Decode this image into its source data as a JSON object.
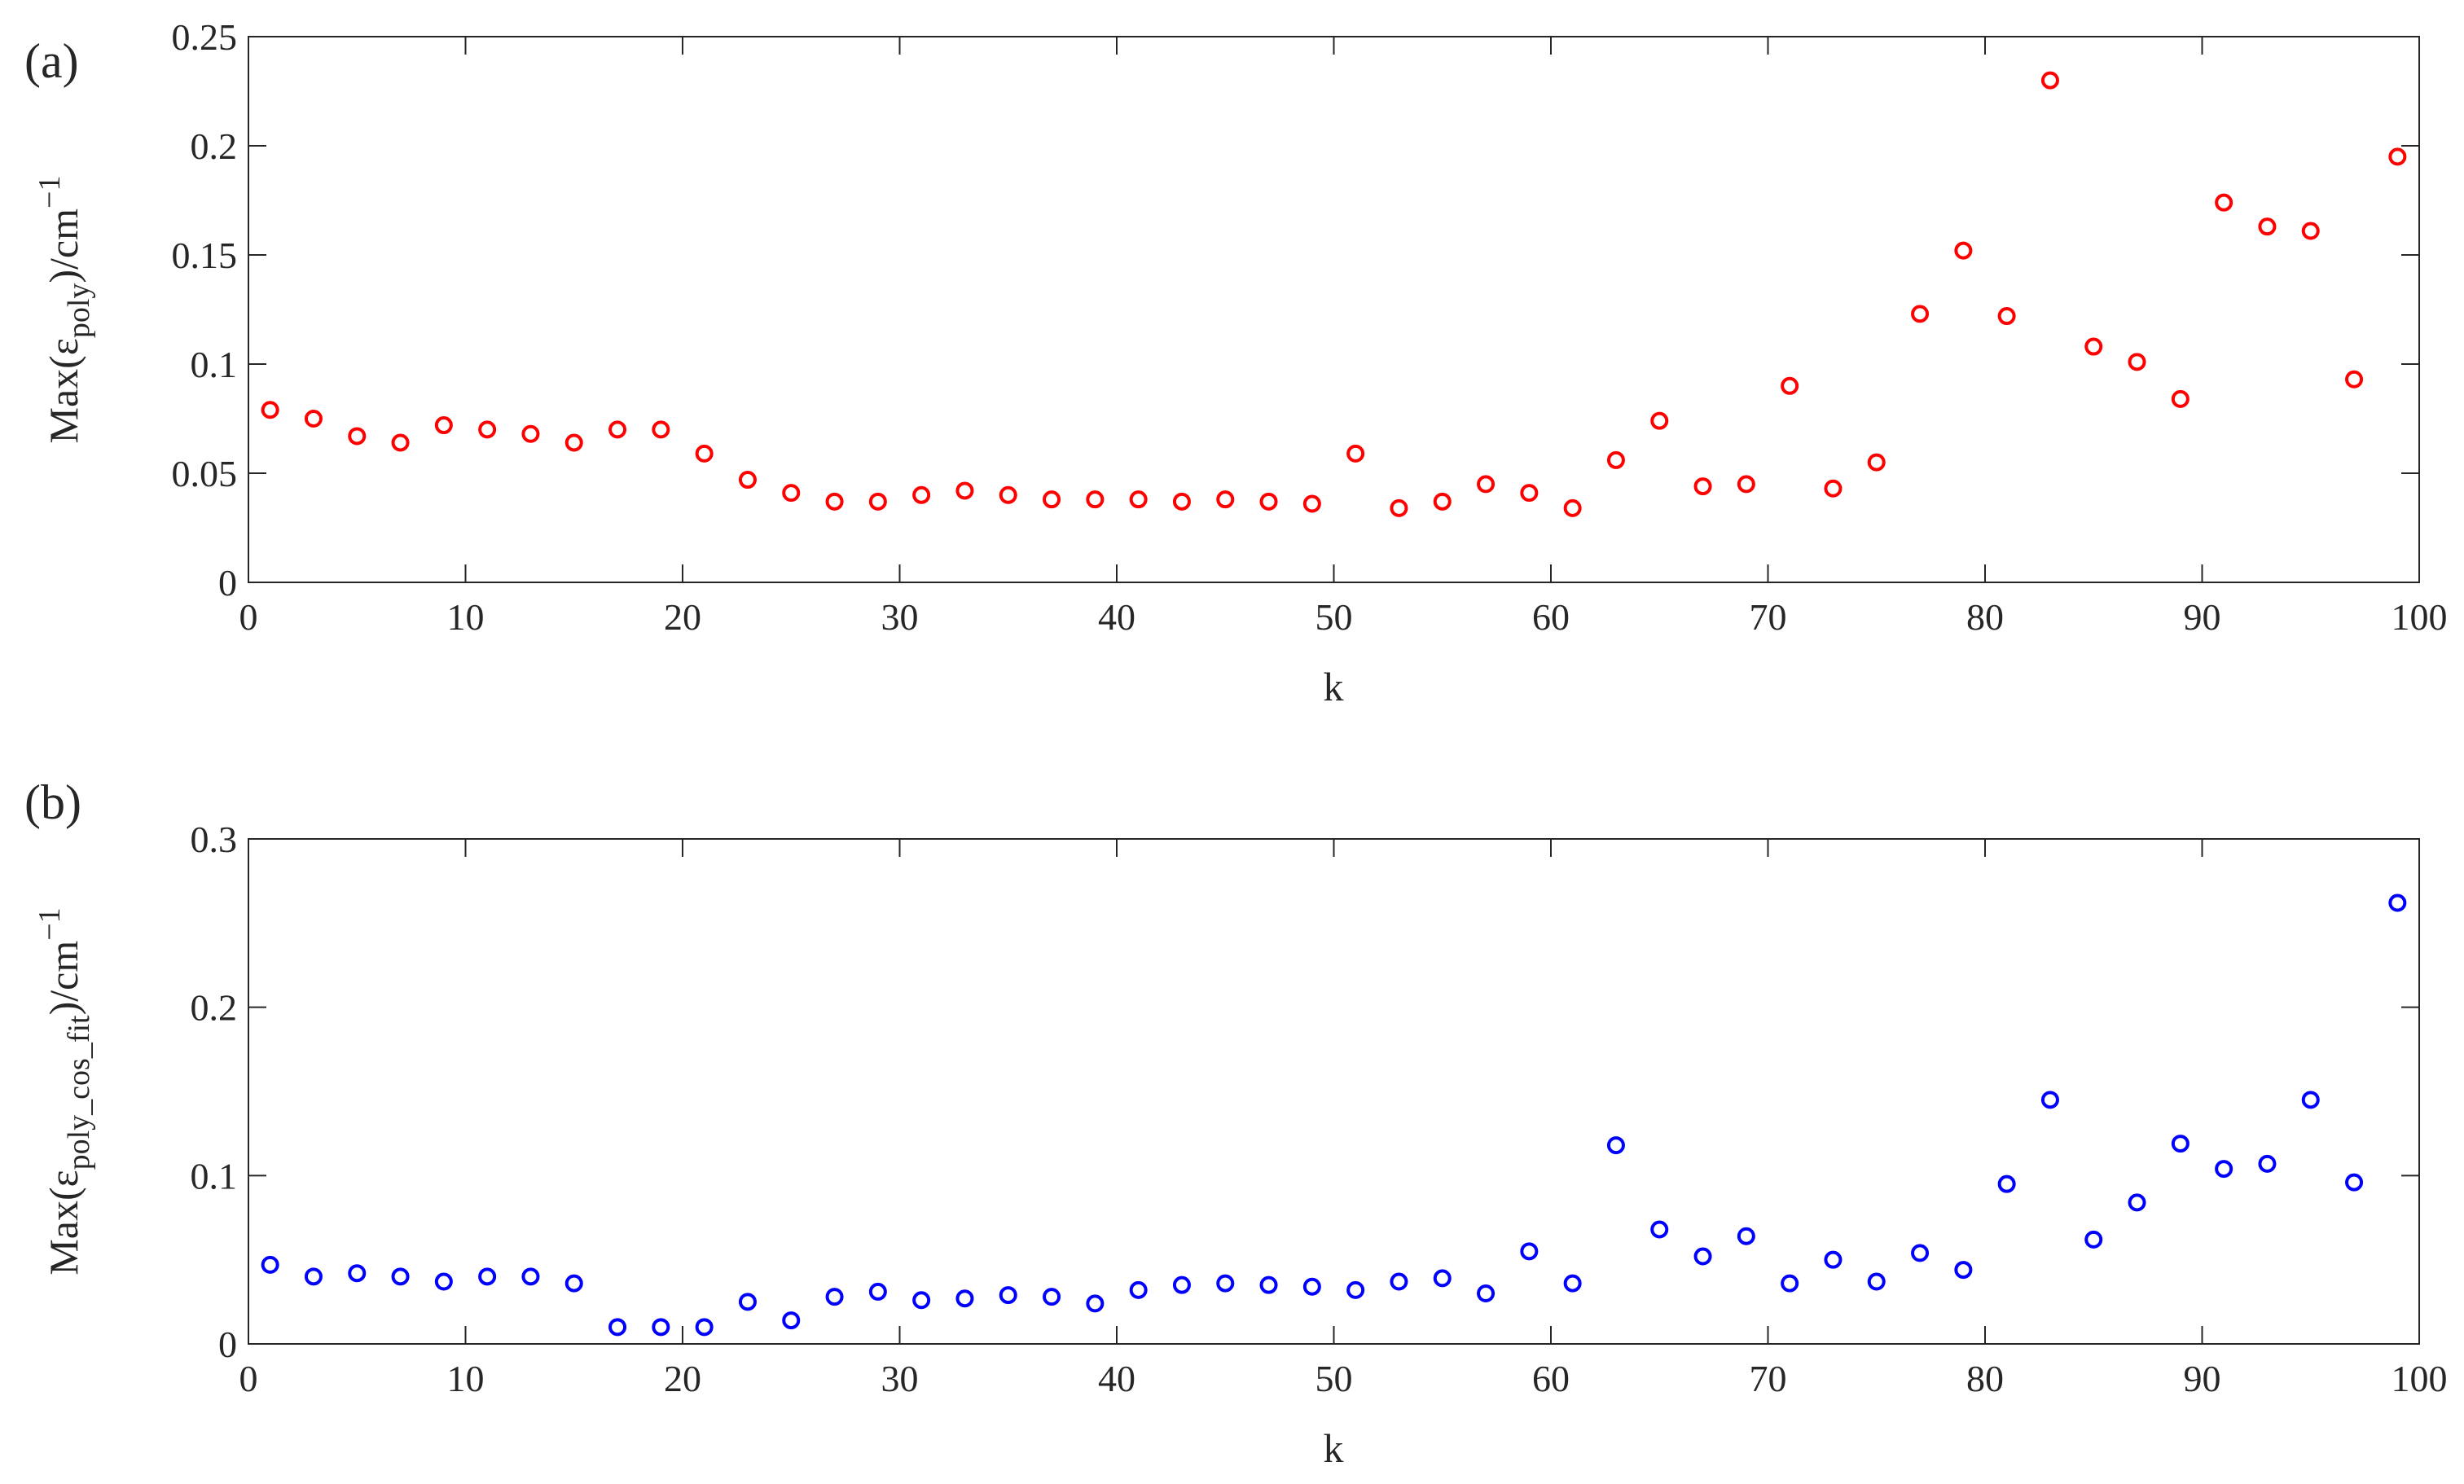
{
  "chart_data": [
    {
      "panel_label": "(a)",
      "type": "scatter",
      "xlabel": "k",
      "ylabel": {
        "prefix": "Max(ε",
        "sub": "poly",
        "suffix": ")/cm",
        "sup": "−1"
      },
      "xlim": [
        0,
        100
      ],
      "ylim": [
        0,
        0.25
      ],
      "xticks": [
        "0",
        "10",
        "20",
        "30",
        "40",
        "50",
        "60",
        "70",
        "80",
        "90",
        "100"
      ],
      "yticks": [
        "0",
        "0.05",
        "0.1",
        "0.15",
        "0.2",
        "0.25"
      ],
      "marker": "circle-open",
      "color": "#ff0000",
      "grid": false,
      "series": [
        {
          "x": [
            1,
            3,
            5,
            7,
            9,
            11,
            13,
            15,
            17,
            19,
            21,
            23,
            25,
            27,
            29,
            31,
            33,
            35,
            37,
            39,
            41,
            43,
            45,
            47,
            49,
            51,
            53,
            55,
            57,
            59,
            61,
            63,
            65,
            67,
            69,
            71,
            73,
            75,
            77,
            79,
            81,
            83,
            85,
            87,
            89,
            91,
            93,
            95,
            97,
            99
          ],
          "y": [
            0.079,
            0.075,
            0.067,
            0.064,
            0.072,
            0.07,
            0.068,
            0.064,
            0.07,
            0.07,
            0.059,
            0.047,
            0.041,
            0.037,
            0.037,
            0.04,
            0.042,
            0.04,
            0.038,
            0.038,
            0.038,
            0.037,
            0.038,
            0.037,
            0.036,
            0.059,
            0.034,
            0.037,
            0.045,
            0.041,
            0.034,
            0.056,
            0.074,
            0.044,
            0.045,
            0.09,
            0.043,
            0.055,
            0.123,
            0.152,
            0.122,
            0.23,
            0.108,
            0.101,
            0.084,
            0.174,
            0.163,
            0.161,
            0.093,
            0.195
          ]
        }
      ]
    },
    {
      "panel_label": "(b)",
      "type": "scatter",
      "xlabel": "k",
      "ylabel": {
        "prefix": "Max(ε",
        "sub": "poly_cos_fit",
        "suffix": ")/cm",
        "sup": "−1"
      },
      "xlim": [
        0,
        100
      ],
      "ylim": [
        0,
        0.3
      ],
      "xticks": [
        "0",
        "10",
        "20",
        "30",
        "40",
        "50",
        "60",
        "70",
        "80",
        "90",
        "100"
      ],
      "yticks": [
        "0",
        "0.1",
        "0.2",
        "0.3"
      ],
      "marker": "circle-open",
      "color": "#0000ff",
      "grid": false,
      "series": [
        {
          "x": [
            1,
            3,
            5,
            7,
            9,
            11,
            13,
            15,
            17,
            19,
            21,
            23,
            25,
            27,
            29,
            31,
            33,
            35,
            37,
            39,
            41,
            43,
            45,
            47,
            49,
            51,
            53,
            55,
            57,
            59,
            61,
            63,
            65,
            67,
            69,
            71,
            73,
            75,
            77,
            79,
            81,
            83,
            85,
            87,
            89,
            91,
            93,
            95,
            97,
            99
          ],
          "y": [
            0.047,
            0.04,
            0.042,
            0.04,
            0.037,
            0.04,
            0.04,
            0.036,
            0.01,
            0.01,
            0.01,
            0.025,
            0.014,
            0.028,
            0.031,
            0.026,
            0.027,
            0.029,
            0.028,
            0.024,
            0.032,
            0.035,
            0.036,
            0.035,
            0.034,
            0.032,
            0.037,
            0.039,
            0.03,
            0.055,
            0.036,
            0.118,
            0.068,
            0.052,
            0.064,
            0.036,
            0.05,
            0.037,
            0.054,
            0.044,
            0.095,
            0.145,
            0.062,
            0.084,
            0.119,
            0.104,
            0.107,
            0.145,
            0.096,
            0.262
          ]
        }
      ]
    }
  ]
}
